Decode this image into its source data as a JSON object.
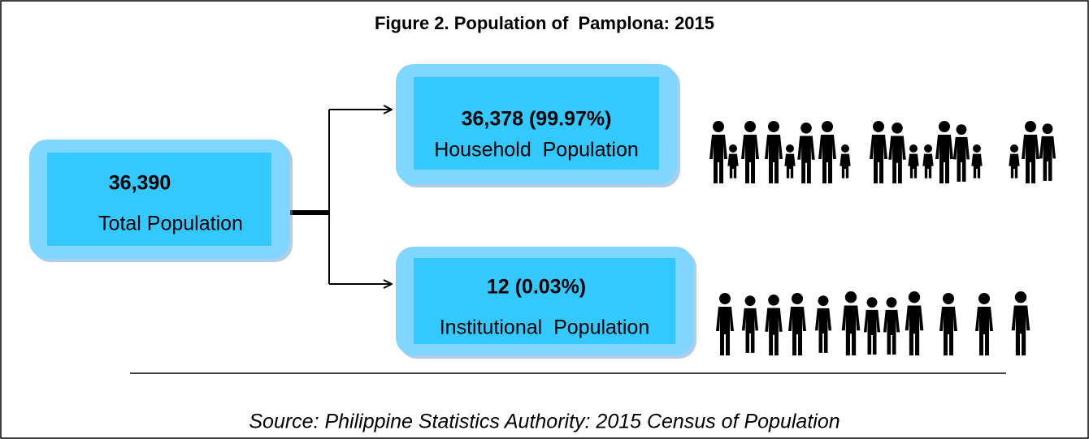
{
  "title": "Figure 2. Population of  Pamplona: 2015",
  "nodes": [
    {
      "value": "36,390",
      "label": "Total Population"
    },
    {
      "value": "36,378 (99.97%)",
      "label": "Household  Population"
    },
    {
      "value": "12 (0.03%)",
      "label": "Institutional  Population"
    }
  ],
  "source": "Source: Philippine Statistics Authority: 2015 Census of Population"
}
